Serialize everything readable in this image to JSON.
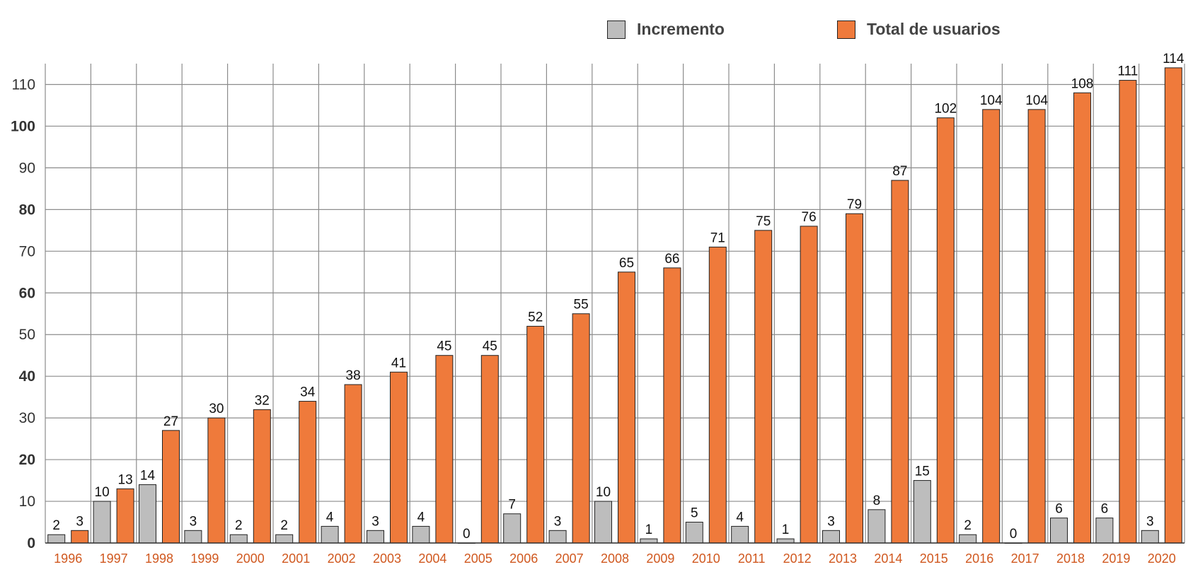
{
  "chart_data": {
    "type": "bar",
    "title": "",
    "xlabel": "",
    "ylabel": "",
    "categories": [
      "1996",
      "1997",
      "1998",
      "1999",
      "2000",
      "2001",
      "2002",
      "2003",
      "2004",
      "2005",
      "2006",
      "2007",
      "2008",
      "2009",
      "2010",
      "2011",
      "2012",
      "2013",
      "2014",
      "2015",
      "2016",
      "2017",
      "2018",
      "2019",
      "2020"
    ],
    "series": [
      {
        "name": "Incremento",
        "color": "#bdbdbd",
        "values": [
          2,
          10,
          14,
          3,
          2,
          2,
          4,
          3,
          4,
          0,
          7,
          3,
          10,
          1,
          5,
          4,
          1,
          3,
          8,
          15,
          2,
          0,
          6,
          6,
          3
        ]
      },
      {
        "name": "Total de usuarios",
        "color": "#ef7a3b",
        "values": [
          3,
          13,
          27,
          30,
          32,
          34,
          38,
          41,
          45,
          45,
          52,
          55,
          65,
          66,
          71,
          75,
          76,
          79,
          87,
          102,
          104,
          104,
          108,
          111,
          114
        ]
      }
    ],
    "ylim": [
      0,
      115
    ],
    "yticks": [
      0,
      10,
      20,
      30,
      40,
      50,
      60,
      70,
      80,
      90,
      100,
      110
    ],
    "grid": true,
    "legend_position": "top-right",
    "tick_label_color": "#d0581f"
  }
}
